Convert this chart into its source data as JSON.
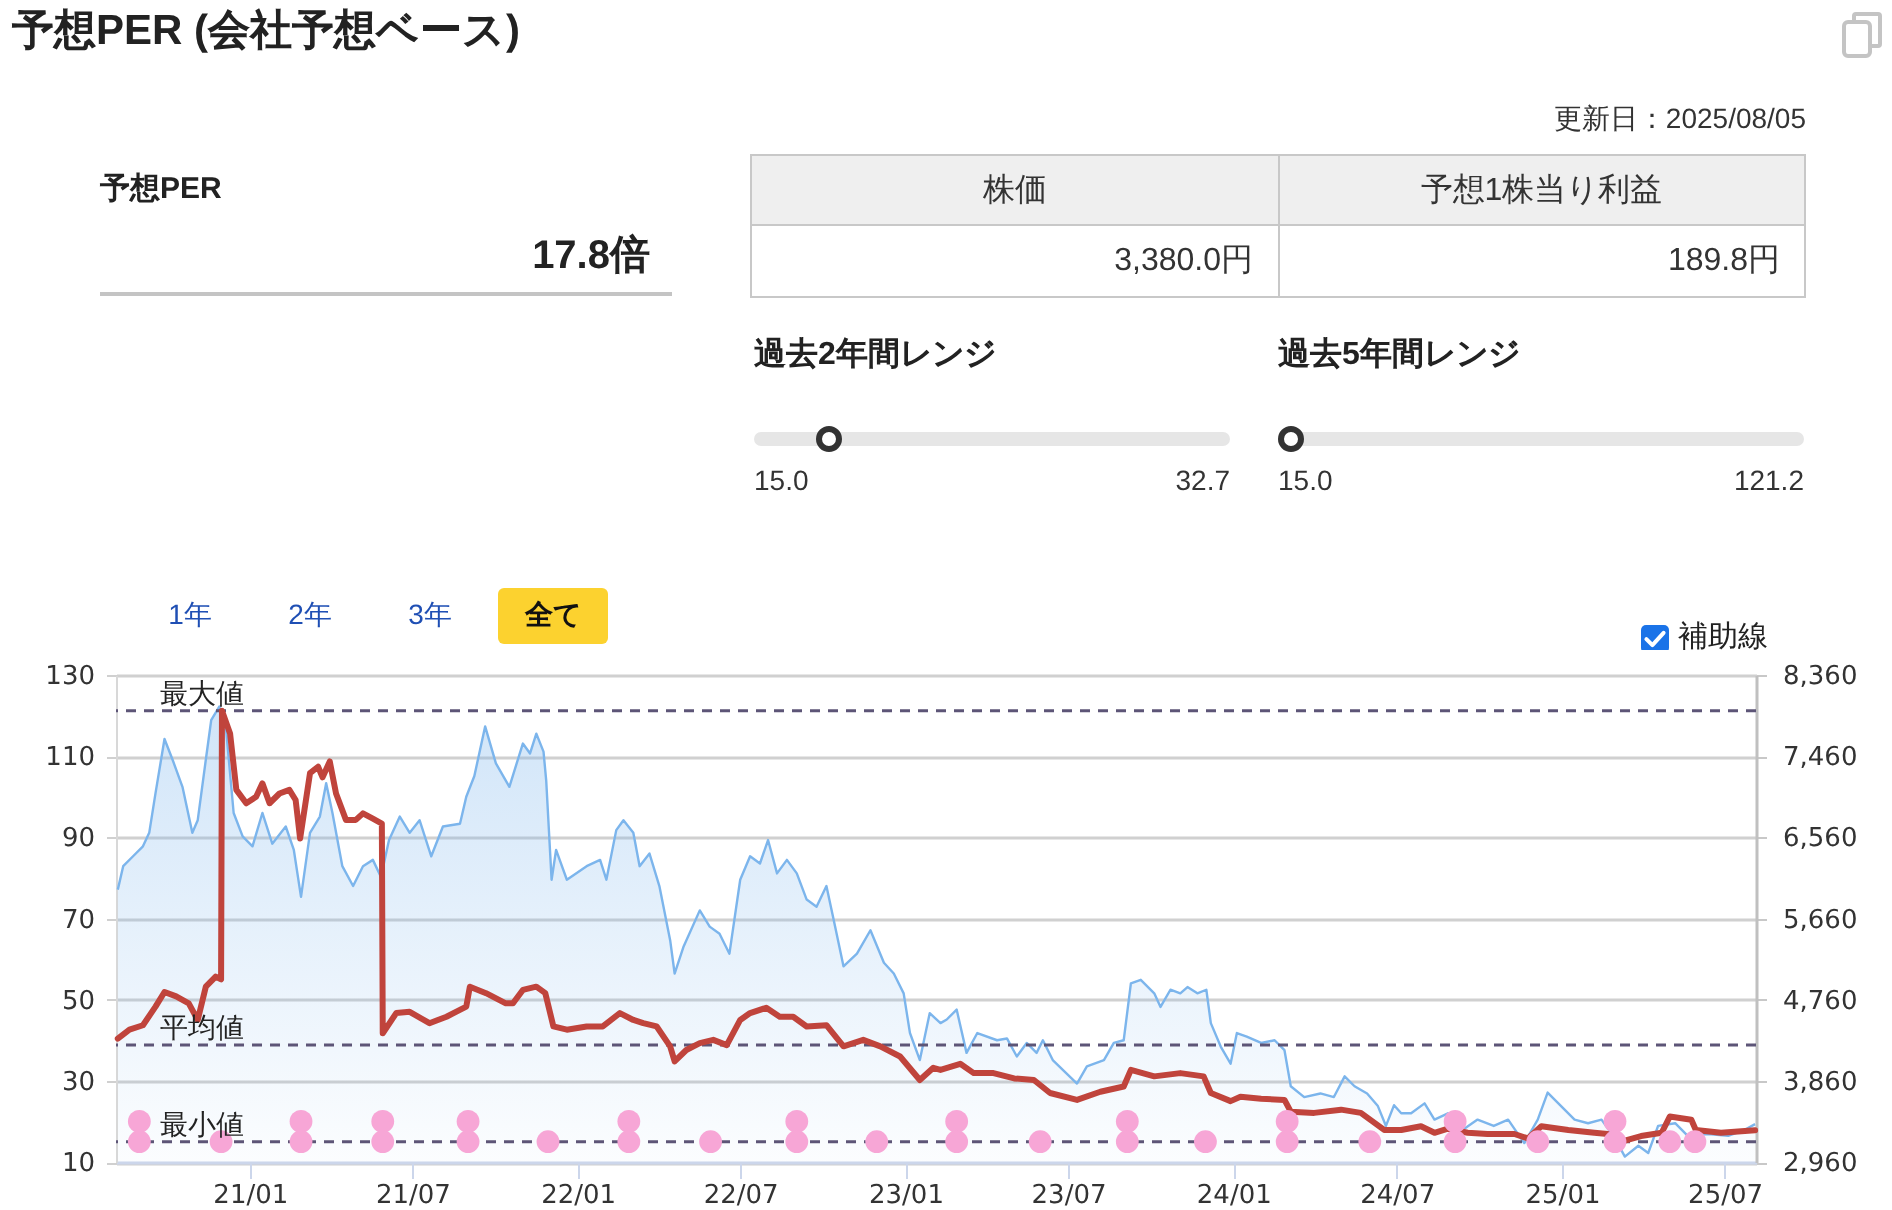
{
  "chart_data": [
    {
      "type": "other",
      "title": "予想PER (会社予想ベース)",
      "annotations": [
        "更新日：2025/08/05",
        "予想PER",
        "17.8倍",
        "株価",
        "予想1株当り利益",
        "3,380.0円",
        "189.8円",
        "過去2年間レンジ",
        "15.0",
        "32.7",
        "過去5年間レンジ",
        "15.0",
        "121.2",
        "1年",
        "2年",
        "3年",
        "全て",
        "補助線"
      ]
    },
    {
      "type": "line",
      "xlim": [
        "2020-08-05",
        "2025-08-05"
      ],
      "xticks": [
        {
          "value": "2021-01-01",
          "label": "21/01"
        },
        {
          "value": "2021-07-01",
          "label": "21/07"
        },
        {
          "value": "2022-01-01",
          "label": "22/01"
        },
        {
          "value": "2022-07-01",
          "label": "22/07"
        },
        {
          "value": "2023-01-01",
          "label": "23/01"
        },
        {
          "value": "2023-07-01",
          "label": "23/07"
        },
        {
          "value": "2024-01-01",
          "label": "24/01"
        },
        {
          "value": "2024-07-01",
          "label": "24/07"
        },
        {
          "value": "2025-01-01",
          "label": "25/01"
        },
        {
          "value": "2025-07-01",
          "label": "25/07"
        }
      ],
      "ylim": [
        10,
        130
      ],
      "yticks": [
        10,
        30,
        50,
        70,
        90,
        110,
        130
      ],
      "y2lim": [
        2960,
        8360
      ],
      "y2ticks": [
        {
          "value": 2960,
          "label": "2,960"
        },
        {
          "value": 3860,
          "label": "3,860"
        },
        {
          "value": 4760,
          "label": "4,760"
        },
        {
          "value": 5660,
          "label": "5,660"
        },
        {
          "value": 6560,
          "label": "6,560"
        },
        {
          "value": 7460,
          "label": "7,460"
        },
        {
          "value": 8360,
          "label": "8,360"
        }
      ],
      "grid": "y",
      "ref_lines": [
        {
          "axis": "y",
          "value": 121.2,
          "label": "最大値",
          "color": "#5d5577",
          "line_style": "dashed"
        },
        {
          "axis": "y",
          "value": 38.8,
          "label": "平均値",
          "color": "#5d5577",
          "line_style": "dashed"
        },
        {
          "axis": "y",
          "value": 15.0,
          "label": "最小値",
          "color": "#5d5577",
          "line_style": "dashed"
        }
      ],
      "series": [
        {
          "type": "area",
          "axis": "y2",
          "color": "#7cb5ec",
          "x": [
            "2020-08-07",
            "2020-08-13",
            "2020-08-24",
            "2020-09-04",
            "2020-09-11",
            "2020-09-18",
            "2020-09-28",
            "2020-10-07",
            "2020-10-18",
            "2020-10-29",
            "2020-11-04",
            "2020-11-13",
            "2020-11-19",
            "2020-11-28",
            "2020-12-05",
            "2020-12-14",
            "2020-12-24",
            "2021-01-04",
            "2021-01-15",
            "2021-01-26",
            "2021-02-10",
            "2021-02-19",
            "2021-02-27",
            "2021-03-09",
            "2021-03-20",
            "2021-03-27",
            "2021-04-03",
            "2021-04-14",
            "2021-04-26",
            "2021-05-07",
            "2021-05-18",
            "2021-05-27",
            "2021-06-05",
            "2021-06-17",
            "2021-06-28",
            "2021-07-09",
            "2021-07-22",
            "2021-08-04",
            "2021-08-23",
            "2021-08-30",
            "2021-09-08",
            "2021-09-20",
            "2021-10-02",
            "2021-10-17",
            "2021-11-01",
            "2021-11-09",
            "2021-11-16",
            "2021-11-24",
            "2021-11-27",
            "2021-12-03",
            "2021-12-08",
            "2021-12-20",
            "2022-01-11",
            "2022-01-26",
            "2022-02-02",
            "2022-02-13",
            "2022-02-21",
            "2022-03-04",
            "2022-03-11",
            "2022-03-22",
            "2022-04-02",
            "2022-04-14",
            "2022-04-19",
            "2022-04-29",
            "2022-05-17",
            "2022-05-28",
            "2022-06-08",
            "2022-06-19",
            "2022-07-01",
            "2022-07-12",
            "2022-07-23",
            "2022-08-01",
            "2022-08-11",
            "2022-08-22",
            "2022-09-02",
            "2022-09-13",
            "2022-09-24",
            "2022-10-05",
            "2022-10-13",
            "2022-10-24",
            "2022-11-08",
            "2022-11-23",
            "2022-12-08",
            "2022-12-19",
            "2022-12-30",
            "2023-01-06",
            "2023-01-17",
            "2023-01-28",
            "2023-02-09",
            "2023-02-16",
            "2023-02-27",
            "2023-03-10",
            "2023-03-22",
            "2023-04-13",
            "2023-04-24",
            "2023-05-05",
            "2023-05-16",
            "2023-05-27",
            "2023-06-03",
            "2023-06-14",
            "2023-07-11",
            "2023-07-22",
            "2023-08-10",
            "2023-08-21",
            "2023-09-01",
            "2023-09-09",
            "2023-09-20",
            "2023-10-05",
            "2023-10-12",
            "2023-10-23",
            "2023-11-03",
            "2023-11-11",
            "2023-11-22",
            "2023-12-02",
            "2023-12-07",
            "2023-12-18",
            "2023-12-29",
            "2024-01-05",
            "2024-01-16",
            "2024-02-01",
            "2024-02-16",
            "2024-02-27",
            "2024-03-05",
            "2024-03-20",
            "2024-04-07",
            "2024-04-22",
            "2024-05-04",
            "2024-05-15",
            "2024-05-29",
            "2024-06-10",
            "2024-06-19",
            "2024-06-28",
            "2024-07-06",
            "2024-07-17",
            "2024-08-01",
            "2024-08-12",
            "2024-08-27",
            "2024-09-07",
            "2024-09-29",
            "2024-10-17",
            "2024-11-02",
            "2024-11-20",
            "2024-12-05",
            "2024-12-16",
            "2024-12-31",
            "2025-01-15",
            "2025-01-30",
            "2025-02-14",
            "2025-03-01",
            "2025-03-12",
            "2025-03-27",
            "2025-04-07",
            "2025-04-18",
            "2025-05-07",
            "2025-05-21",
            "2025-06-13",
            "2025-07-05",
            "2025-07-24",
            "2025-08-04"
          ],
          "values": [
            5980,
            6240,
            6350,
            6460,
            6610,
            7050,
            7650,
            7420,
            7120,
            6610,
            6750,
            7420,
            7860,
            8010,
            7820,
            6830,
            6570,
            6460,
            6830,
            6490,
            6680,
            6420,
            5900,
            6610,
            6790,
            7160,
            6830,
            6240,
            6020,
            6240,
            6310,
            6120,
            6530,
            6790,
            6610,
            6750,
            6350,
            6680,
            6710,
            7010,
            7240,
            7790,
            7380,
            7120,
            7600,
            7490,
            7710,
            7510,
            7190,
            6090,
            6420,
            6090,
            6240,
            6310,
            6090,
            6640,
            6750,
            6610,
            6240,
            6380,
            6020,
            5420,
            5050,
            5350,
            5750,
            5570,
            5490,
            5270,
            6090,
            6350,
            6270,
            6530,
            6160,
            6310,
            6160,
            5870,
            5790,
            6020,
            5650,
            5130,
            5270,
            5530,
            5170,
            5050,
            4830,
            4390,
            4090,
            4610,
            4500,
            4540,
            4650,
            4170,
            4390,
            4310,
            4330,
            4130,
            4280,
            4170,
            4310,
            4090,
            3830,
            4020,
            4090,
            4280,
            4310,
            4940,
            4980,
            4830,
            4680,
            4870,
            4830,
            4900,
            4830,
            4870,
            4500,
            4240,
            4050,
            4390,
            4350,
            4280,
            4310,
            4200,
            3800,
            3680,
            3720,
            3680,
            3910,
            3800,
            3720,
            3580,
            3360,
            3590,
            3500,
            3500,
            3610,
            3430,
            3500,
            3280,
            3430,
            3360,
            3430,
            3170,
            3430,
            3730,
            3580,
            3430,
            3390,
            3430,
            3220,
            3020,
            3140,
            3060,
            3360,
            3390,
            3250,
            3270,
            3250,
            3320,
            3380
          ]
        },
        {
          "type": "line",
          "color": "#c0443c",
          "x": [
            "2020-08-07",
            "2020-08-20",
            "2020-09-04",
            "2020-09-18",
            "2020-09-28",
            "2020-10-11",
            "2020-10-25",
            "2020-11-04",
            "2020-11-13",
            "2020-11-24",
            "2020-11-30",
            "2020-12-01",
            "2020-12-10",
            "2020-12-17",
            "2020-12-28",
            "2021-01-08",
            "2021-01-15",
            "2021-01-23",
            "2021-02-03",
            "2021-02-14",
            "2021-02-21",
            "2021-02-26",
            "2021-03-09",
            "2021-03-18",
            "2021-03-23",
            "2021-03-31",
            "2021-04-07",
            "2021-04-18",
            "2021-04-29",
            "2021-05-07",
            "2021-05-18",
            "2021-05-28",
            "2021-05-29",
            "2021-06-13",
            "2021-06-28",
            "2021-07-20",
            "2021-08-08",
            "2021-08-30",
            "2021-09-03",
            "2021-09-21",
            "2021-10-13",
            "2021-10-21",
            "2021-11-01",
            "2021-11-16",
            "2021-11-26",
            "2021-12-05",
            "2021-12-20",
            "2022-01-11",
            "2022-01-29",
            "2022-02-17",
            "2022-03-04",
            "2022-03-15",
            "2022-03-30",
            "2022-04-14",
            "2022-04-19",
            "2022-05-02",
            "2022-05-17",
            "2022-06-01",
            "2022-06-16",
            "2022-07-01",
            "2022-07-12",
            "2022-07-30",
            "2022-08-14",
            "2022-08-29",
            "2022-09-13",
            "2022-10-05",
            "2022-10-24",
            "2022-11-15",
            "2022-12-04",
            "2022-12-26",
            "2023-01-17",
            "2023-02-01",
            "2023-02-09",
            "2023-03-03",
            "2023-03-18",
            "2023-04-09",
            "2023-05-02",
            "2023-05-24",
            "2023-06-11",
            "2023-07-11",
            "2023-08-06",
            "2023-09-01",
            "2023-09-09",
            "2023-10-05",
            "2023-11-03",
            "2023-11-29",
            "2023-12-07",
            "2023-12-29",
            "2024-01-09",
            "2024-02-01",
            "2024-02-27",
            "2024-03-05",
            "2024-03-31",
            "2024-04-30",
            "2024-05-22",
            "2024-06-17",
            "2024-07-06",
            "2024-07-28",
            "2024-08-12",
            "2024-08-27",
            "2024-09-18",
            "2024-10-10",
            "2024-11-09",
            "2024-11-24",
            "2024-12-09",
            "2025-01-08",
            "2025-02-06",
            "2025-02-21",
            "2025-03-08",
            "2025-03-30",
            "2025-04-22",
            "2025-05-01",
            "2025-05-25",
            "2025-05-30",
            "2025-06-27",
            "2025-08-04"
          ],
          "values": [
            40.4,
            42.6,
            43.7,
            48.3,
            51.9,
            50.8,
            49.1,
            45.0,
            53.2,
            55.7,
            55.0,
            121.2,
            115.6,
            101.7,
            98.4,
            100.0,
            103.3,
            98.4,
            100.8,
            101.7,
            99.2,
            89.7,
            105.8,
            107.4,
            104.8,
            108.7,
            100.8,
            94.3,
            94.3,
            95.9,
            94.6,
            93.4,
            41.7,
            46.7,
            47.0,
            44.2,
            45.8,
            48.3,
            53.2,
            51.6,
            49.1,
            49.1,
            52.4,
            53.2,
            51.6,
            43.4,
            42.6,
            43.4,
            43.4,
            46.7,
            45.0,
            44.2,
            43.4,
            38.5,
            34.8,
            37.6,
            39.3,
            40.1,
            38.8,
            45.0,
            46.7,
            48.0,
            45.8,
            45.8,
            43.4,
            43.7,
            38.5,
            40.1,
            38.5,
            36.0,
            30.2,
            33.2,
            32.7,
            34.2,
            31.9,
            31.9,
            30.6,
            30.2,
            27.0,
            25.3,
            27.3,
            28.6,
            32.7,
            31.1,
            31.9,
            31.1,
            27.0,
            25.0,
            26.1,
            25.6,
            25.3,
            22.4,
            22.1,
            22.9,
            22.1,
            17.9,
            17.9,
            18.8,
            17.2,
            18.2,
            17.2,
            16.9,
            16.9,
            15.8,
            18.8,
            17.9,
            17.2,
            16.9,
            15.0,
            16.4,
            17.2,
            21.2,
            20.4,
            17.9,
            17.2,
            17.8
          ]
        },
        {
          "type": "scatter",
          "color": "#f7a6d6",
          "marker": "circle",
          "x": [
            "2020-08-31",
            "2021-02-27",
            "2021-05-29",
            "2021-09-01",
            "2022-02-27",
            "2022-09-02",
            "2023-02-27",
            "2023-09-05",
            "2024-03-01",
            "2024-09-04",
            "2025-03-01"
          ],
          "values": [
            20,
            20,
            20,
            20,
            20,
            20,
            20,
            20,
            20,
            20,
            20
          ]
        },
        {
          "type": "scatter",
          "color": "#f7a6d6",
          "marker": "circle",
          "x": [
            "2020-08-31",
            "2020-11-30",
            "2021-02-27",
            "2021-05-29",
            "2021-09-01",
            "2021-11-29",
            "2022-02-27",
            "2022-05-29",
            "2022-09-02",
            "2022-11-30",
            "2023-02-27",
            "2023-05-31",
            "2023-09-05",
            "2023-12-01",
            "2024-03-01",
            "2024-06-01",
            "2024-09-04",
            "2024-12-05",
            "2025-03-01",
            "2025-05-01",
            "2025-05-29"
          ],
          "values": [
            15,
            15,
            15,
            15,
            15,
            15,
            15,
            15,
            15,
            15,
            15,
            15,
            15,
            15,
            15,
            15,
            15,
            15,
            15,
            15,
            15
          ]
        }
      ]
    }
  ]
}
